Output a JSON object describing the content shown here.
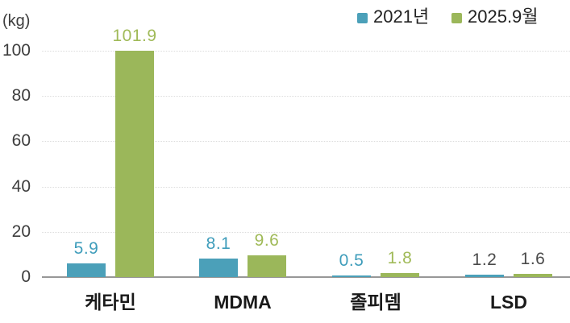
{
  "chart_data": {
    "type": "bar",
    "title": "",
    "unit_label": "(kg)",
    "categories": [
      "케타민",
      "MDMA",
      "졸피뎀",
      "LSD"
    ],
    "series": [
      {
        "name": "2021년",
        "color": "#4ba0b9",
        "values": [
          5.9,
          8.1,
          0.5,
          1.2
        ],
        "label_colors": [
          "#3f9dbb",
          "#3f9dbb",
          "#3f9dbb",
          "#4a4a4a"
        ]
      },
      {
        "name": "2025.9월",
        "color": "#9bb75a",
        "values": [
          101.9,
          9.6,
          1.8,
          1.6
        ],
        "label_colors": [
          "#a0ba58",
          "#a0ba58",
          "#a0ba58",
          "#4a4a4a"
        ]
      }
    ],
    "xlabel": "",
    "ylabel": "",
    "ylim": [
      0,
      100
    ],
    "yticks": [
      0,
      20,
      40,
      60,
      80,
      100
    ],
    "grid": "horizontal-dotted",
    "legend_position": "top-right",
    "colors": {
      "axis_line": "#979797",
      "grid_line": "#dcdcdc",
      "tick_text": "#3d3d3d",
      "category_text": "#1a1a1a",
      "legend_text": "#222222",
      "background": "#ffffff"
    }
  }
}
